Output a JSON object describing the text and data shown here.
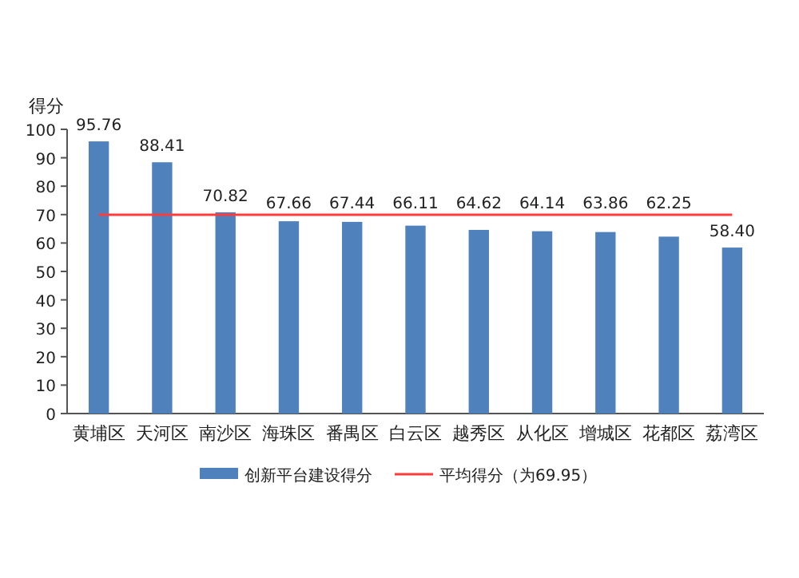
{
  "chart_data": {
    "type": "bar",
    "ylabel": "得分",
    "categories": [
      "黄埔区",
      "天河区",
      "南沙区",
      "海珠区",
      "番禺区",
      "白云区",
      "越秀区",
      "从化区",
      "增城区",
      "花都区",
      "荔湾区"
    ],
    "series": [
      {
        "name": "创新平台建设得分",
        "type": "bar",
        "color": "#4f81bd",
        "values": [
          95.76,
          88.41,
          70.82,
          67.66,
          67.44,
          66.11,
          64.62,
          64.14,
          63.86,
          62.25,
          58.4
        ],
        "value_labels": [
          "95.76",
          "88.41",
          "70.82",
          "67.66",
          "67.44",
          "66.11",
          "64.62",
          "64.14",
          "63.86",
          "62.25",
          "58.40"
        ]
      },
      {
        "name": "平均得分（为69.95）",
        "type": "line",
        "color": "#ff3b3b",
        "values": [
          69.95,
          69.95,
          69.95,
          69.95,
          69.95,
          69.95,
          69.95,
          69.95,
          69.95,
          69.95,
          69.95
        ]
      }
    ],
    "ylim": [
      0,
      100
    ],
    "yticks": [
      0,
      10,
      20,
      30,
      40,
      50,
      60,
      70,
      80,
      90,
      100
    ],
    "legend": "bottom"
  }
}
